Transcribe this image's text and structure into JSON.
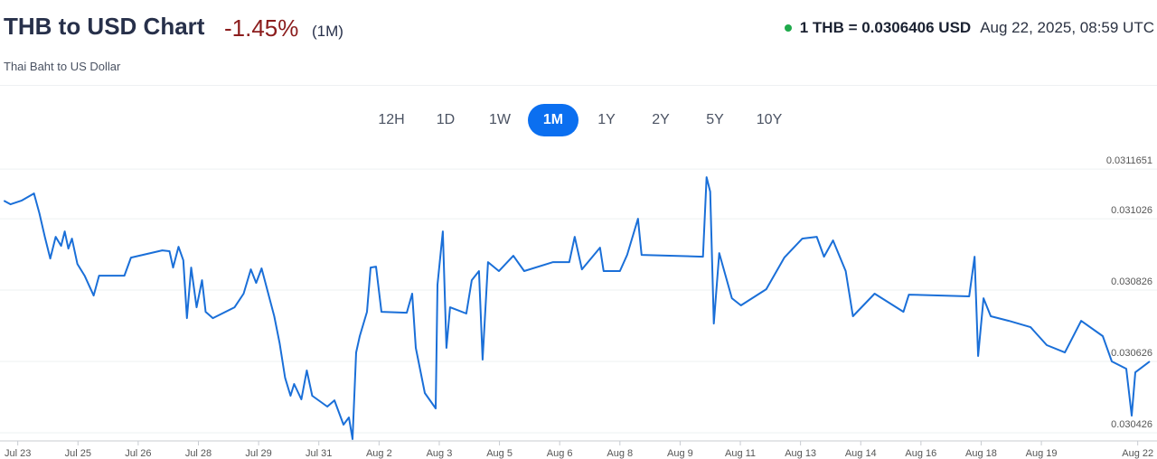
{
  "header": {
    "title": "THB to USD Chart",
    "change": "-1.45%",
    "period": "(1M)",
    "subtitle": "Thai Baht to US Dollar",
    "rate": "1 THB = 0.0306406 USD",
    "timestamp": "Aug 22, 2025, 08:59 UTC",
    "ranges": [
      {
        "label": "12H",
        "active": false
      },
      {
        "label": "1D",
        "active": false
      },
      {
        "label": "1W",
        "active": false
      },
      {
        "label": "1M",
        "active": true
      },
      {
        "label": "1Y",
        "active": false
      },
      {
        "label": "2Y",
        "active": false
      },
      {
        "label": "5Y",
        "active": false
      },
      {
        "label": "10Y",
        "active": false
      }
    ]
  },
  "chart_data": {
    "type": "line",
    "x": [
      -0.23,
      -0.12,
      0.06,
      0.27,
      0.36,
      0.45,
      0.54,
      0.63,
      0.72,
      0.78,
      0.84,
      0.9,
      0.99,
      1.11,
      1.26,
      1.35,
      1.77,
      1.88,
      2.4,
      2.52,
      2.58,
      2.67,
      2.75,
      2.81,
      2.88,
      2.97,
      3.06,
      3.12,
      3.24,
      3.6,
      3.75,
      3.87,
      3.96,
      4.05,
      4.26,
      4.35,
      4.44,
      4.53,
      4.59,
      4.71,
      4.8,
      4.89,
      5.14,
      5.26,
      5.41,
      5.5,
      5.56,
      5.62,
      5.68,
      5.8,
      5.86,
      5.95,
      6.04,
      6.46,
      6.55,
      6.61,
      6.76,
      6.94,
      6.97,
      7.06,
      7.12,
      7.18,
      7.45,
      7.54,
      7.66,
      7.72,
      7.81,
      7.99,
      8.23,
      8.41,
      8.89,
      9.16,
      9.25,
      9.37,
      9.67,
      9.73,
      10.0,
      10.12,
      10.3,
      10.36,
      11.38,
      11.44,
      11.5,
      11.56,
      11.65,
      11.86,
      12.01,
      12.43,
      12.73,
      13.03,
      13.27,
      13.39,
      13.54,
      13.75,
      13.87,
      14.23,
      14.71,
      14.8,
      15.8,
      15.89,
      15.95,
      16.04,
      16.16,
      16.46,
      16.82,
      17.09,
      17.39,
      17.66,
      18.02,
      18.17,
      18.41,
      18.5,
      18.56,
      18.8
    ],
    "series": [
      {
        "name": "THB/USD",
        "color": "#1a6fd8",
        "values": [
          0.0310766,
          0.0310665,
          0.0310766,
          0.0310969,
          0.0310412,
          0.0309754,
          0.0309146,
          0.0309754,
          0.03095,
          0.0309905,
          0.0309424,
          0.0309703,
          0.0308994,
          0.0308665,
          0.0308108,
          0.0308665,
          0.0308665,
          0.0309171,
          0.0309374,
          0.0309349,
          0.0308893,
          0.0309475,
          0.0309095,
          0.0307475,
          0.0308893,
          0.0307779,
          0.0308538,
          0.0307652,
          0.0307475,
          0.0307779,
          0.0308159,
          0.0308842,
          0.0308462,
          0.0308868,
          0.0307526,
          0.0306766,
          0.0305804,
          0.0305298,
          0.0305627,
          0.0305197,
          0.0306007,
          0.0305298,
          0.0304994,
          0.0305171,
          0.0304488,
          0.030469,
          0.0304083,
          0.0306513,
          0.0306969,
          0.0307652,
          0.0308893,
          0.0308918,
          0.0307652,
          0.0307627,
          0.0308159,
          0.030664,
          0.0305374,
          0.0304944,
          0.0308412,
          0.0309905,
          0.030664,
          0.0307779,
          0.0307602,
          0.0308538,
          0.0308792,
          0.0306311,
          0.0309045,
          0.0308792,
          0.0309222,
          0.0308792,
          0.0309045,
          0.0309045,
          0.0309754,
          0.0308842,
          0.030945,
          0.0308792,
          0.0308792,
          0.0309247,
          0.031026,
          0.0309247,
          0.0309197,
          0.0311424,
          0.0311019,
          0.0307323,
          0.0309298,
          0.0308032,
          0.030783,
          0.0308285,
          0.0309171,
          0.0309703,
          0.0309754,
          0.0309197,
          0.0309652,
          0.0308792,
          0.0307526,
          0.0308159,
          0.0307652,
          0.0308133,
          0.0308083,
          0.0309197,
          0.0306412,
          0.0308032,
          0.0307526,
          0.0307399,
          0.0307222,
          0.0306716,
          0.0306513,
          0.0307399,
          0.0306969,
          0.030626,
          0.0306057,
          0.0304741,
          0.0305956,
          0.030626
        ]
      }
    ],
    "xlim": [
      -0.25,
      18.8
    ],
    "xticks": [
      {
        "value": 0,
        "label": "Jul 23"
      },
      {
        "value": 1,
        "label": "Jul 25"
      },
      {
        "value": 2,
        "label": "Jul 26"
      },
      {
        "value": 3,
        "label": "Jul 28"
      },
      {
        "value": 4,
        "label": "Jul 29"
      },
      {
        "value": 5,
        "label": "Jul 31"
      },
      {
        "value": 6,
        "label": "Aug 2"
      },
      {
        "value": 7,
        "label": "Aug 3"
      },
      {
        "value": 8,
        "label": "Aug 5"
      },
      {
        "value": 9,
        "label": "Aug 6"
      },
      {
        "value": 10,
        "label": "Aug 8"
      },
      {
        "value": 11,
        "label": "Aug 9"
      },
      {
        "value": 12,
        "label": "Aug 11"
      },
      {
        "value": 13,
        "label": "Aug 13"
      },
      {
        "value": 14,
        "label": "Aug 14"
      },
      {
        "value": 15,
        "label": "Aug 16"
      },
      {
        "value": 16,
        "label": "Aug 18"
      },
      {
        "value": 17,
        "label": "Aug 19"
      },
      {
        "value": 18.6,
        "label": "Aug 22"
      }
    ],
    "ylim": [
      0.0304,
      0.03119
    ],
    "yticks": [
      0.030426,
      0.030626,
      0.030826,
      0.031026,
      0.0311651
    ],
    "grid": true
  }
}
